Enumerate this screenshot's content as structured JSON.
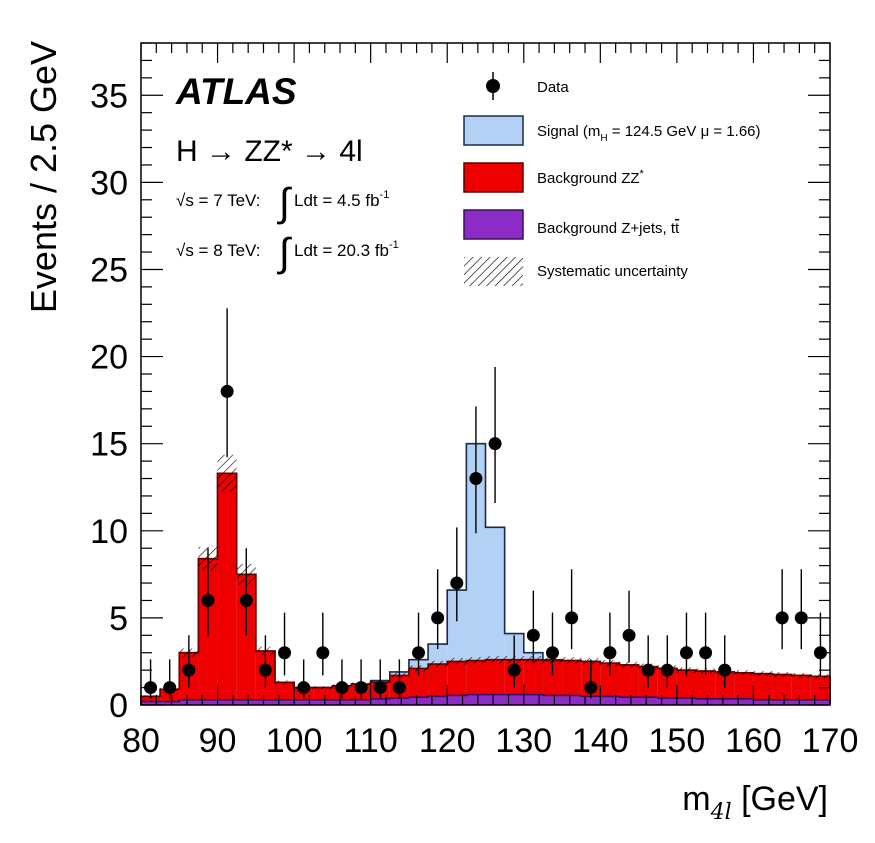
{
  "chart_data": {
    "type": "bar",
    "experiment": "ATLAS",
    "process": "H → ZZ* → 4l",
    "lumi_7": {
      "energy": "√s = 7 TeV:",
      "integral": "Ldt = 4.5 fb",
      "exp": "-1"
    },
    "lumi_8": {
      "energy": "√s = 8 TeV:",
      "integral": "Ldt = 20.3 fb",
      "exp": "-1"
    },
    "xlabel": {
      "main": "m",
      "sub": "4l",
      "unit": " [GeV]"
    },
    "ylabel": "Events / 2.5 GeV",
    "xlim": [
      80,
      170
    ],
    "ylim": [
      0,
      38
    ],
    "bin_width": 2.5,
    "xticks": [
      80,
      90,
      100,
      110,
      120,
      130,
      140,
      150,
      160,
      170
    ],
    "yticks": [
      0,
      5,
      10,
      15,
      20,
      25,
      30,
      35
    ],
    "bin_edges": [
      80,
      82.5,
      85,
      87.5,
      90,
      92.5,
      95,
      97.5,
      100,
      102.5,
      105,
      107.5,
      110,
      112.5,
      115,
      117.5,
      120,
      122.5,
      125,
      127.5,
      130,
      132.5,
      135,
      137.5,
      140,
      142.5,
      145,
      147.5,
      150,
      152.5,
      155,
      157.5,
      160,
      162.5,
      165,
      167.5,
      170
    ],
    "series": [
      {
        "name": "Background Z+jets, tt̄",
        "values": [
          0.2,
          0.2,
          0.3,
          0.3,
          0.3,
          0.3,
          0.3,
          0.3,
          0.3,
          0.3,
          0.3,
          0.3,
          0.35,
          0.4,
          0.45,
          0.5,
          0.55,
          0.6,
          0.6,
          0.6,
          0.6,
          0.55,
          0.55,
          0.5,
          0.5,
          0.45,
          0.45,
          0.4,
          0.4,
          0.35,
          0.35,
          0.35,
          0.3,
          0.3,
          0.3,
          0.3
        ]
      },
      {
        "name": "Background ZZ*",
        "values": [
          0.5,
          0.9,
          3.0,
          8.4,
          13.3,
          7.5,
          3.1,
          1.3,
          1.0,
          1.0,
          1.1,
          1.2,
          1.3,
          1.7,
          2.1,
          2.35,
          2.5,
          2.55,
          2.6,
          2.6,
          2.6,
          2.55,
          2.55,
          2.5,
          2.4,
          2.3,
          2.2,
          2.1,
          2.0,
          1.95,
          1.9,
          1.85,
          1.8,
          1.75,
          1.7,
          1.65
        ]
      },
      {
        "name": "Signal (m_H = 124.5 GeV μ = 1.66)",
        "values": [
          0.5,
          0.9,
          3.0,
          8.4,
          13.3,
          7.5,
          3.1,
          1.3,
          1.0,
          1.0,
          1.1,
          1.2,
          1.4,
          1.9,
          2.6,
          3.5,
          6.6,
          15.0,
          10.2,
          4.1,
          3.0,
          2.6,
          2.55,
          2.5,
          2.4,
          2.3,
          2.2,
          2.1,
          2.0,
          1.95,
          1.9,
          1.85,
          1.8,
          1.75,
          1.7,
          1.65
        ]
      }
    ],
    "data": {
      "x": [
        81.25,
        83.75,
        86.25,
        88.75,
        91.25,
        93.75,
        96.25,
        98.75,
        101.25,
        103.75,
        106.25,
        108.75,
        111.25,
        113.75,
        116.25,
        118.75,
        121.25,
        123.75,
        126.25,
        128.75,
        131.25,
        133.75,
        136.25,
        138.75,
        141.25,
        143.75,
        146.25,
        148.75,
        151.25,
        153.75,
        156.25,
        163.75,
        166.25,
        168.75
      ],
      "y": [
        1,
        1,
        2,
        6,
        18,
        6,
        2,
        3,
        1,
        3,
        1,
        1,
        1,
        1,
        3,
        5,
        7,
        13,
        15,
        2,
        4,
        3,
        5,
        1,
        3,
        4,
        2,
        2,
        3,
        3,
        2,
        5,
        5,
        3
      ]
    },
    "legend": {
      "position": "top-right",
      "entries": [
        {
          "key": "data",
          "label": "Data"
        },
        {
          "key": "signal",
          "label": "Signal (m",
          "sub": "H",
          "label_tail": " = 124.5 GeV μ = 1.66)",
          "color": "#b3d1f5"
        },
        {
          "key": "zz",
          "label": "Background ZZ",
          "sup": "*",
          "color": "#ee0000"
        },
        {
          "key": "zjets",
          "label": "Background Z+jets, t",
          "label_bar": "t",
          "color": "#8b2cc7"
        },
        {
          "key": "syst",
          "label": "Systematic uncertainty"
        }
      ]
    }
  }
}
